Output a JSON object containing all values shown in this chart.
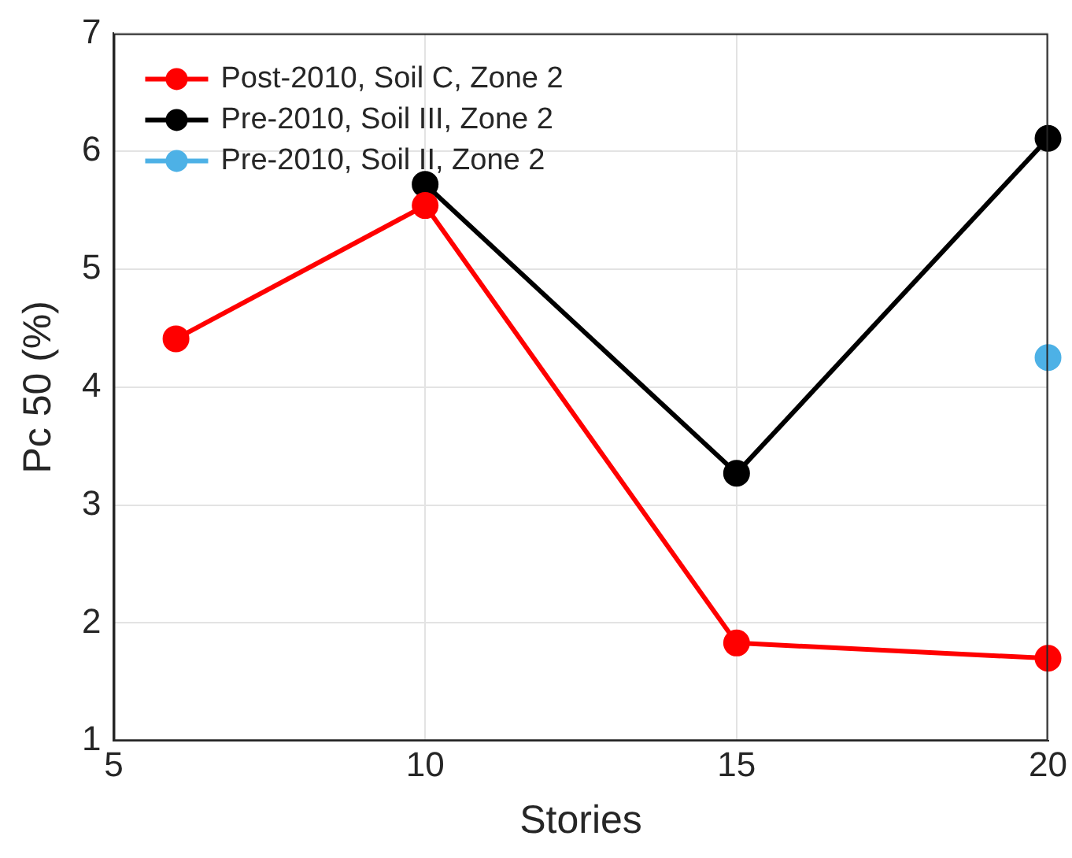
{
  "chart_data": {
    "type": "line",
    "xlabel": "Stories",
    "ylabel": "Pc 50 (%)",
    "xlim": [
      5,
      20
    ],
    "xticks": [
      5,
      10,
      15,
      20
    ],
    "ylim": [
      1,
      7
    ],
    "yticks": [
      1,
      2,
      3,
      4,
      5,
      6,
      7
    ],
    "grid": true,
    "legend": "top left",
    "marker": "circle",
    "line_style": "solid",
    "series": [
      {
        "name": "Post-2010, Soil C, Zone 2",
        "color": "#ff0000",
        "x": [
          6,
          10,
          15,
          20
        ],
        "values": [
          4.41,
          5.54,
          1.83,
          1.7
        ]
      },
      {
        "name": "Pre-2010, Soil III, Zone 2",
        "color": "#000000",
        "x": [
          10,
          15,
          20
        ],
        "values": [
          5.72,
          3.27,
          6.11
        ]
      },
      {
        "name": "Pre-2010, Soil II, Zone 2",
        "color": "#4db1e6",
        "x": [
          20
        ],
        "values": [
          4.25
        ]
      }
    ]
  }
}
